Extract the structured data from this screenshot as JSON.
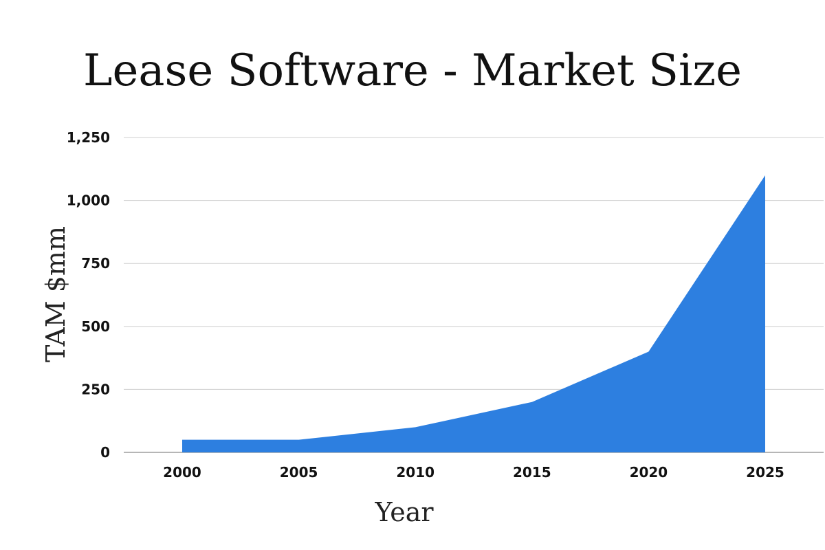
{
  "chart_data": {
    "type": "area",
    "title": "Lease Software - Market Size",
    "xlabel": "Year",
    "ylabel": "TAM $mm",
    "x": [
      2000,
      2005,
      2010,
      2015,
      2020,
      2025
    ],
    "x_tick_labels": [
      "2000",
      "2005",
      "2010",
      "2015",
      "2020",
      "2025"
    ],
    "series": [
      {
        "values": [
          50,
          50,
          100,
          200,
          400,
          1100
        ]
      }
    ],
    "ylim": [
      0,
      1250
    ],
    "y_ticks": [
      0,
      250,
      500,
      750,
      1000,
      1250
    ],
    "y_tick_labels": [
      "0",
      "250",
      "500",
      "750",
      "1,000",
      "1,250"
    ],
    "grid": true,
    "legend": "none",
    "colors": {
      "area": "#2d7fe0",
      "grid": "#cfcfcf",
      "baseline": "#8a8a8a"
    }
  }
}
